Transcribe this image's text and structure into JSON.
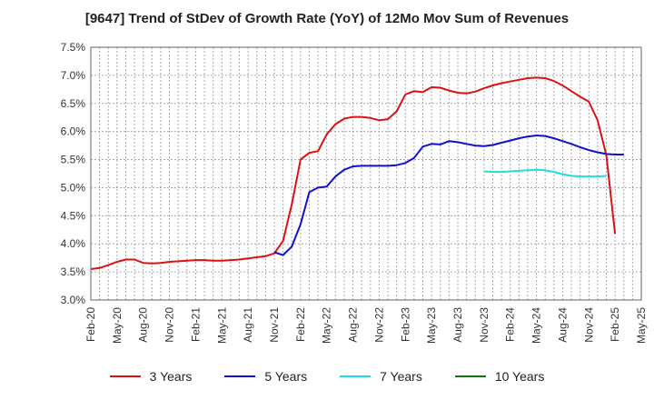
{
  "chart_data": {
    "type": "line",
    "title": "[9647]  Trend of StDev of Growth Rate (YoY) of 12Mo Mov Sum of Revenues",
    "xlabel": "",
    "ylabel": "",
    "ylim": [
      3.0,
      7.5
    ],
    "y_ticks": [
      "3.0%",
      "3.5%",
      "4.0%",
      "4.5%",
      "5.0%",
      "5.5%",
      "6.0%",
      "6.5%",
      "7.0%",
      "7.5%"
    ],
    "x_ticks": [
      "Feb-20",
      "May-20",
      "Aug-20",
      "Nov-20",
      "Feb-21",
      "May-21",
      "Aug-21",
      "Nov-21",
      "Feb-22",
      "May-22",
      "Aug-22",
      "Nov-22",
      "Feb-23",
      "May-23",
      "Aug-23",
      "Nov-23",
      "Feb-24",
      "May-24",
      "Aug-24",
      "Nov-24",
      "Feb-25",
      "May-25"
    ],
    "grid": true,
    "legend_position": "bottom",
    "series": [
      {
        "name": "3 Years",
        "color": "#dd1111",
        "start_index": 0,
        "values": [
          3.55,
          3.57,
          3.62,
          3.68,
          3.72,
          3.72,
          3.66,
          3.65,
          3.66,
          3.68,
          3.69,
          3.7,
          3.71,
          3.71,
          3.7,
          3.7,
          3.71,
          3.72,
          3.74,
          3.76,
          3.78,
          3.83,
          4.05,
          4.7,
          5.5,
          5.62,
          5.65,
          5.95,
          6.13,
          6.23,
          6.26,
          6.26,
          6.24,
          6.2,
          6.22,
          6.36,
          6.66,
          6.72,
          6.7,
          6.79,
          6.78,
          6.73,
          6.69,
          6.68,
          6.71,
          6.77,
          6.82,
          6.86,
          6.89,
          6.92,
          6.95,
          6.96,
          6.95,
          6.9,
          6.82,
          6.72,
          6.62,
          6.53,
          6.2,
          5.58,
          4.18
        ]
      },
      {
        "name": "5 Years",
        "color": "#1111cc",
        "start_index": 21,
        "values": [
          3.85,
          3.8,
          3.95,
          4.35,
          4.92,
          5.0,
          5.02,
          5.2,
          5.32,
          5.38,
          5.39,
          5.39,
          5.39,
          5.39,
          5.4,
          5.44,
          5.53,
          5.73,
          5.78,
          5.77,
          5.83,
          5.81,
          5.78,
          5.75,
          5.74,
          5.76,
          5.8,
          5.84,
          5.88,
          5.91,
          5.93,
          5.92,
          5.88,
          5.83,
          5.78,
          5.72,
          5.67,
          5.63,
          5.6,
          5.59,
          5.59
        ]
      },
      {
        "name": "7 Years",
        "color": "#22dddd",
        "start_index": 45,
        "values": [
          5.29,
          5.28,
          5.28,
          5.29,
          5.3,
          5.31,
          5.32,
          5.31,
          5.28,
          5.24,
          5.21,
          5.2,
          5.2,
          5.2,
          5.21
        ]
      },
      {
        "name": "10 Years",
        "color": "#117711",
        "start_index": 0,
        "values": []
      }
    ]
  }
}
